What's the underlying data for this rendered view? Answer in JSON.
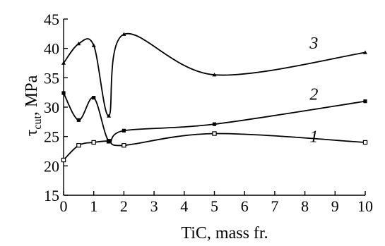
{
  "chart_data": {
    "type": "line",
    "title": "",
    "xlabel": "TiC, mass fr.",
    "ylabel_main": "τ",
    "ylabel_sub": "cut",
    "ylabel_unit": ", MPa",
    "xlim": [
      0,
      10
    ],
    "ylim": [
      15,
      45
    ],
    "x_ticks": [
      "0",
      "1",
      "2",
      "3",
      "4",
      "5",
      "6",
      "7",
      "8",
      "9",
      "10"
    ],
    "y_ticks": [
      "15",
      "20",
      "25",
      "30",
      "35",
      "40",
      "45"
    ],
    "grid": false,
    "legend": "inline curve numbers",
    "series": [
      {
        "name": "1",
        "marker": "open-square",
        "x": [
          0,
          0.5,
          1,
          1.5,
          2,
          5,
          10
        ],
        "y": [
          21,
          23.5,
          24,
          24.2,
          23.5,
          25.5,
          24
        ],
        "label_at": [
          8.3,
          25.0
        ]
      },
      {
        "name": "2",
        "marker": "filled-square",
        "x": [
          0,
          0.5,
          1,
          1.5,
          2,
          5,
          10
        ],
        "y": [
          32.4,
          27.8,
          31.6,
          24.2,
          26,
          27.1,
          31
        ],
        "label_at": [
          8.3,
          32.2
        ]
      },
      {
        "name": "3",
        "marker": "filled-triangle",
        "x": [
          0,
          0.5,
          1,
          1.5,
          2,
          5,
          10
        ],
        "y": [
          37.5,
          40.8,
          40.5,
          28.5,
          42.4,
          35.5,
          39.3
        ],
        "label_at": [
          8.3,
          40.9
        ]
      }
    ]
  }
}
